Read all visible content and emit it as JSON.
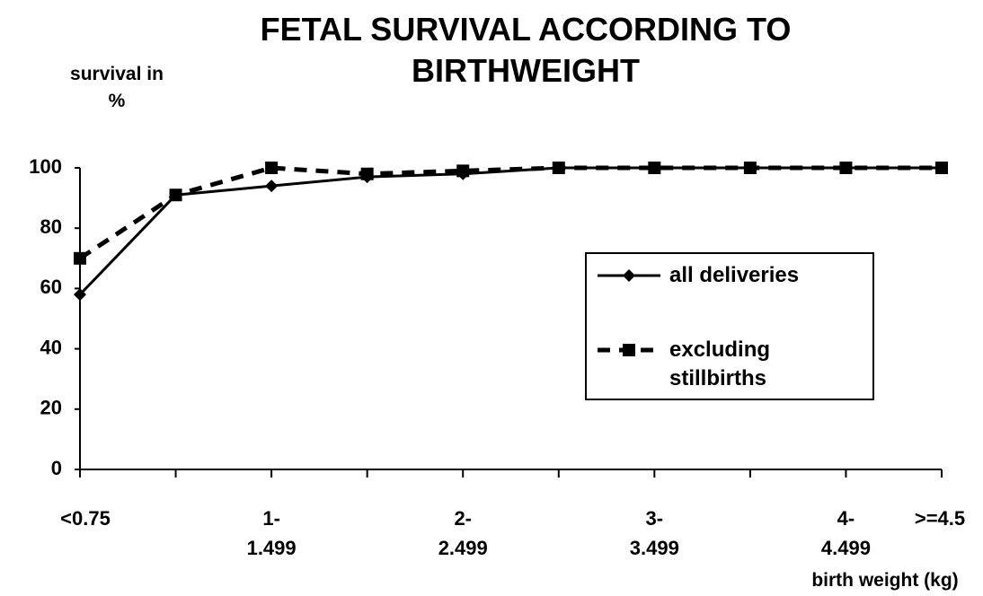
{
  "chart_data": {
    "type": "line",
    "title": "FETAL SURVIVAL ACCORDING TO BIRTHWEIGHT",
    "y_label": "survival in %",
    "x_label": "birth weight (kg)",
    "categories": [
      "<0.75",
      null,
      "1-1.499",
      null,
      "2-2.499",
      null,
      "3-3.499",
      null,
      "4-4.499",
      ">=4.5"
    ],
    "series": [
      {
        "name": "all deliveries",
        "color": "#000000",
        "line_style": "solid",
        "marker": "diamond",
        "values": [
          58,
          91,
          94,
          97,
          98,
          100,
          100,
          100,
          100,
          100
        ]
      },
      {
        "name": "excluding stillbirths",
        "color": "#000000",
        "line_style": "dashed",
        "marker": "square",
        "values": [
          70,
          91,
          100,
          98,
          99,
          100,
          100,
          100,
          100,
          100
        ]
      }
    ],
    "ylim": [
      0,
      100
    ],
    "yticks": [
      0,
      20,
      40,
      60,
      80,
      100
    ],
    "grid": false
  }
}
